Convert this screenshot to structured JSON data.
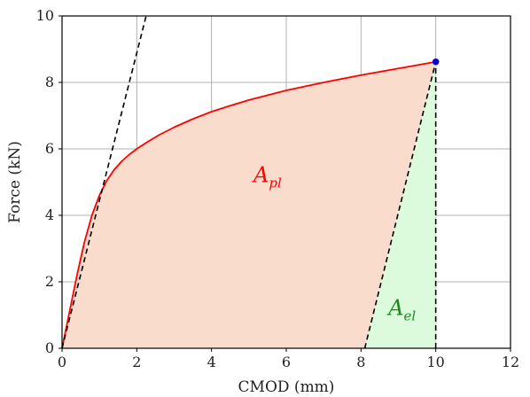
{
  "chart_data": {
    "type": "line",
    "title": "",
    "xlabel": "CMOD (mm)",
    "ylabel": "Force (kN)",
    "xlim": [
      0,
      12
    ],
    "ylim": [
      0,
      10
    ],
    "xticks": [
      0,
      2,
      4,
      6,
      8,
      10,
      12
    ],
    "yticks": [
      0,
      2,
      4,
      6,
      8,
      10
    ],
    "grid": true,
    "series": [
      {
        "type": "curve",
        "color": "#ff0000",
        "x": [
          0,
          0.1,
          0.2,
          0.4,
          0.6,
          0.8,
          1.0,
          1.2,
          1.4,
          1.6,
          1.8,
          2.0,
          2.3,
          2.6,
          3.0,
          3.5,
          4.0,
          4.5,
          5.0,
          6.0,
          7.0,
          8.0,
          9.0,
          10.0
        ],
        "y": [
          0,
          0.55,
          1.1,
          2.2,
          3.2,
          4.0,
          4.6,
          5.05,
          5.38,
          5.63,
          5.83,
          6.0,
          6.22,
          6.42,
          6.65,
          6.9,
          7.12,
          7.3,
          7.47,
          7.76,
          8.0,
          8.22,
          8.42,
          8.62
        ]
      },
      {
        "type": "dashed",
        "color": "#000000",
        "x": [
          0,
          2.25
        ],
        "y": [
          0,
          10
        ]
      },
      {
        "type": "dashed",
        "color": "#000000",
        "x": [
          8.1,
          10.0
        ],
        "y": [
          0,
          8.62
        ]
      },
      {
        "type": "dashed",
        "color": "#000000",
        "x": [
          10.0,
          10.0
        ],
        "y": [
          0,
          8.62
        ]
      },
      {
        "type": "point",
        "color": "#0000cc",
        "x": [
          10.0
        ],
        "y": [
          8.62
        ]
      }
    ],
    "areas": [
      {
        "label_main": "A",
        "label_sub": "pl",
        "color": "#ff0000",
        "fill": "#f9dccb",
        "label_x": 5.5,
        "label_y": 5.0
      },
      {
        "label_main": "A",
        "label_sub": "el",
        "color": "#1a8a1a",
        "fill": "#dcfadc",
        "label_x": 9.1,
        "label_y": 1.0
      }
    ]
  }
}
